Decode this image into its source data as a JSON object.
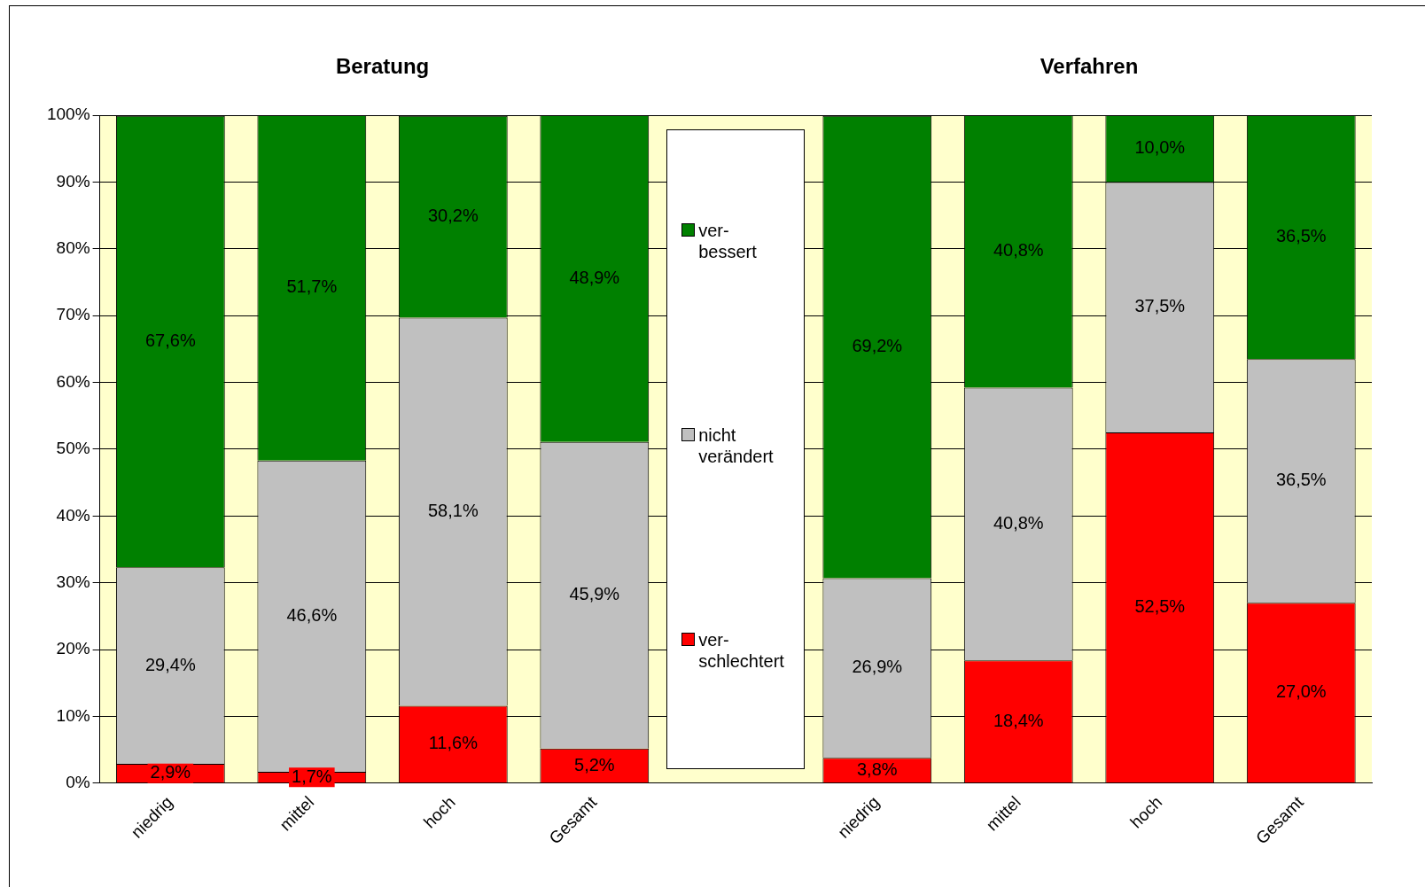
{
  "chart_data": {
    "type": "bar",
    "stacked": true,
    "annotations": [
      "Beratung",
      "Verfahren"
    ],
    "categories": [
      "niedrig",
      "mittel",
      "hoch",
      "Gesamt",
      null,
      "niedrig",
      "mittel",
      "hoch",
      "Gesamt"
    ],
    "series": [
      {
        "name": "ver-\nschlechtert",
        "color": "#ff0000",
        "values": [
          2.9,
          1.7,
          11.6,
          5.2,
          null,
          3.8,
          18.4,
          52.5,
          27.0
        ],
        "value_labels": [
          "2,9%",
          "1,7%",
          "11,6%",
          "5,2%",
          null,
          "3,8%",
          "18,4%",
          "52,5%",
          "27,0%"
        ]
      },
      {
        "name": "nicht\nverändert",
        "color": "#c0c0c0",
        "values": [
          29.4,
          46.6,
          58.1,
          45.9,
          null,
          26.9,
          40.8,
          37.5,
          36.5
        ],
        "value_labels": [
          "29,4%",
          "46,6%",
          "58,1%",
          "45,9%",
          null,
          "26,9%",
          "40,8%",
          "37,5%",
          "36,5%"
        ]
      },
      {
        "name": "ver-\nbessert",
        "color": "#008000",
        "values": [
          67.6,
          51.7,
          30.2,
          48.9,
          null,
          69.2,
          40.8,
          10.0,
          36.5
        ],
        "value_labels": [
          "67,6%",
          "51,7%",
          "30,2%",
          "48,9%",
          null,
          "69,2%",
          "40,8%",
          "10,0%",
          "36,5%"
        ]
      }
    ],
    "ylim": [
      0,
      100
    ],
    "yticks": [
      {
        "value": 0,
        "label": "0%"
      },
      {
        "value": 10,
        "label": "10%"
      },
      {
        "value": 20,
        "label": "20%"
      },
      {
        "value": 30,
        "label": "30%"
      },
      {
        "value": 40,
        "label": "40%"
      },
      {
        "value": 50,
        "label": "50%"
      },
      {
        "value": 60,
        "label": "60%"
      },
      {
        "value": 70,
        "label": "70%"
      },
      {
        "value": 80,
        "label": "80%"
      },
      {
        "value": 90,
        "label": "90%"
      },
      {
        "value": 100,
        "label": "100%"
      }
    ],
    "bands": [
      {
        "axis": "y",
        "from": 0,
        "to": 100,
        "color": "#ffffcc"
      }
    ],
    "grid": "y",
    "legend": "center"
  }
}
